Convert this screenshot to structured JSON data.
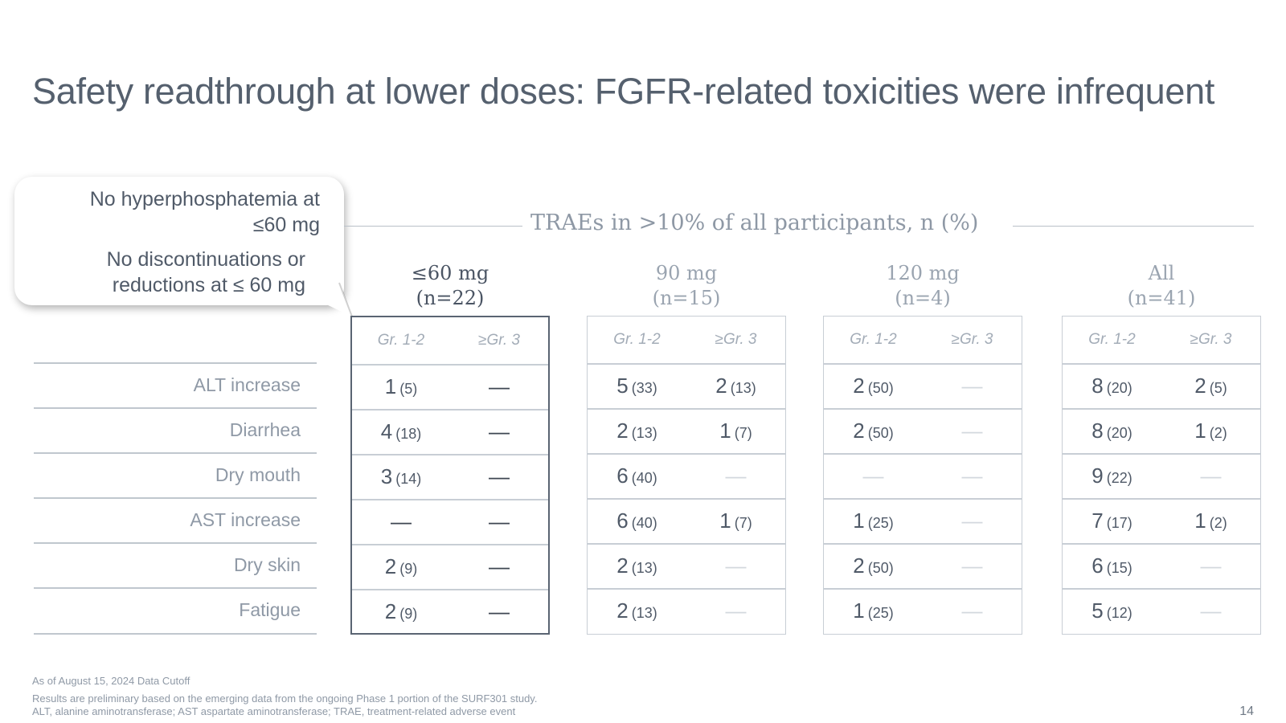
{
  "slide": {
    "title": "Safety readthrough at lower doses: FGFR-related toxicities were infrequent",
    "page_number": "14"
  },
  "callout": {
    "line1": "No hyperphosphatemia at",
    "line2": "≤60 mg",
    "line3": "No discontinuations or",
    "line4": "reductions at ≤ 60 mg"
  },
  "table": {
    "header": "TRAEs in >10% of all participants, n (%)",
    "groups": [
      {
        "label": "≤60 mg",
        "n": "(n=22)",
        "grade1": "Gr. 1-2",
        "grade3": "≥Gr. 3"
      },
      {
        "label": "90 mg",
        "n": "(n=15)",
        "grade1": "Gr. 1-2",
        "grade3": "≥Gr. 3"
      },
      {
        "label": "120 mg",
        "n": "(n=4)",
        "grade1": "Gr. 1-2",
        "grade3": "≥Gr. 3"
      },
      {
        "label": "All",
        "n": "(n=41)",
        "grade1": "Gr. 1-2",
        "grade3": "≥Gr. 3"
      }
    ],
    "rows": [
      {
        "label": "ALT increase",
        "cells": [
          [
            "1",
            "(5)"
          ],
          [
            "—",
            ""
          ],
          [
            "5",
            "(33)"
          ],
          [
            "2",
            "(13)"
          ],
          [
            "2",
            "(50)"
          ],
          [
            "—",
            ""
          ],
          [
            "8",
            "(20)"
          ],
          [
            "2",
            "(5)"
          ]
        ]
      },
      {
        "label": "Diarrhea",
        "cells": [
          [
            "4",
            "(18)"
          ],
          [
            "—",
            ""
          ],
          [
            "2",
            "(13)"
          ],
          [
            "1",
            "(7)"
          ],
          [
            "2",
            "(50)"
          ],
          [
            "—",
            ""
          ],
          [
            "8",
            "(20)"
          ],
          [
            "1",
            "(2)"
          ]
        ]
      },
      {
        "label": "Dry mouth",
        "cells": [
          [
            "3",
            "(14)"
          ],
          [
            "—",
            ""
          ],
          [
            "6",
            "(40)"
          ],
          [
            "—",
            ""
          ],
          [
            "—",
            ""
          ],
          [
            "—",
            ""
          ],
          [
            "9",
            "(22)"
          ],
          [
            "—",
            ""
          ]
        ]
      },
      {
        "label": "AST increase",
        "cells": [
          [
            "—",
            ""
          ],
          [
            "—",
            ""
          ],
          [
            "6",
            "(40)"
          ],
          [
            "1",
            "(7)"
          ],
          [
            "1",
            "(25)"
          ],
          [
            "—",
            ""
          ],
          [
            "7",
            "(17)"
          ],
          [
            "1",
            "(2)"
          ]
        ]
      },
      {
        "label": "Dry skin",
        "cells": [
          [
            "2",
            "(9)"
          ],
          [
            "—",
            ""
          ],
          [
            "2",
            "(13)"
          ],
          [
            "—",
            ""
          ],
          [
            "2",
            "(50)"
          ],
          [
            "—",
            ""
          ],
          [
            "6",
            "(15)"
          ],
          [
            "—",
            ""
          ]
        ]
      },
      {
        "label": "Fatigue",
        "cells": [
          [
            "2",
            "(9)"
          ],
          [
            "—",
            ""
          ],
          [
            "2",
            "(13)"
          ],
          [
            "—",
            ""
          ],
          [
            "1",
            "(25)"
          ],
          [
            "—",
            ""
          ],
          [
            "5",
            "(12)"
          ],
          [
            "—",
            ""
          ]
        ]
      }
    ]
  },
  "footnotes": {
    "cutoff": "As of August 15, 2024 Data Cutoff",
    "note1": "Results are preliminary based on the emerging data from the ongoing Phase 1 portion of the SURF301 study.",
    "note2": "ALT, alanine aminotransferase; AST aspartate aminotransferase; TRAE, treatment-related adverse event"
  }
}
